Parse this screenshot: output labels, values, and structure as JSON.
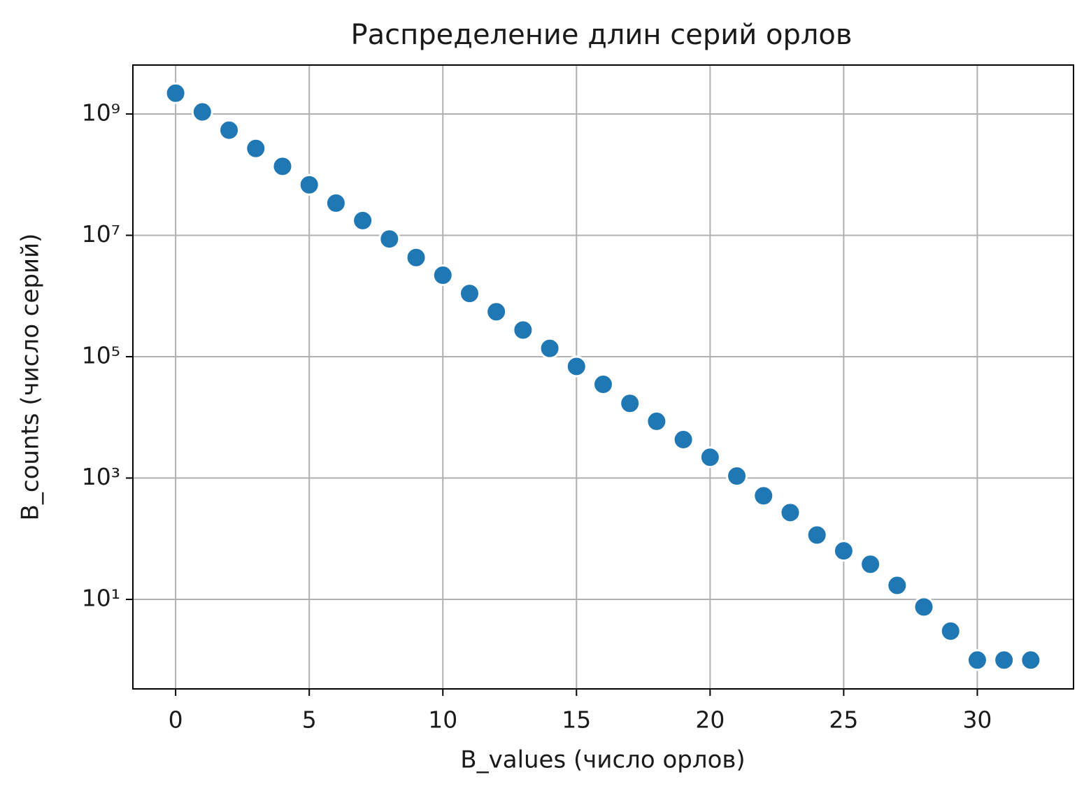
{
  "chart_data": {
    "type": "scatter",
    "title": "Распределение длин серий орлов",
    "x_label": "B_values (число орлов)",
    "y_label": "B_counts (число серий)",
    "x": [
      0,
      1,
      2,
      3,
      4,
      5,
      6,
      7,
      8,
      9,
      10,
      11,
      12,
      13,
      14,
      15,
      16,
      17,
      18,
      19,
      20,
      21,
      22,
      23,
      24,
      25,
      26,
      27,
      28,
      29,
      30,
      31,
      32
    ],
    "series": [
      {
        "color": "#1f77b4",
        "values": [
          2200000000,
          1080000000,
          540000000,
          270000000,
          137000000,
          68000000,
          34000000,
          17500000,
          8700000,
          4300000,
          2200000,
          1100000,
          550000,
          275000,
          137000,
          69000,
          35000,
          17000,
          8600,
          4300,
          2200,
          1080,
          510,
          270,
          115,
          63,
          38,
          17,
          7.5,
          3,
          1,
          1,
          1
        ]
      }
    ],
    "xlim": [
      -1.6,
      33.6
    ],
    "xticks": [
      0,
      5,
      10,
      15,
      20,
      25,
      30
    ],
    "ylim": [
      0.335,
      6400000000
    ],
    "yscale": "log",
    "yticks": [
      {
        "value": 10,
        "label": "10¹"
      },
      {
        "value": 1000,
        "label": "10³"
      },
      {
        "value": 100000,
        "label": "10⁵"
      },
      {
        "value": 10000000,
        "label": "10⁷"
      },
      {
        "value": 1000000000,
        "label": "10⁹"
      }
    ],
    "grid": true
  }
}
